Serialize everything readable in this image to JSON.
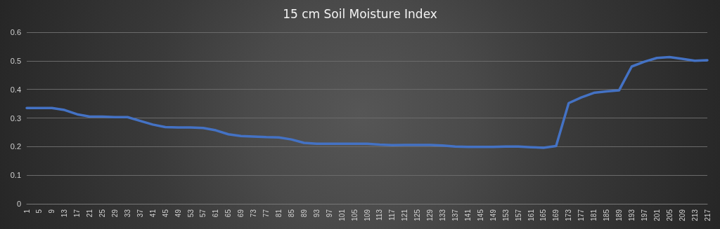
{
  "chart_data": {
    "type": "line",
    "title": "15 cm Soil Moisture Index",
    "categories": [
      "1",
      "5",
      "9",
      "13",
      "17",
      "21",
      "25",
      "29",
      "33",
      "37",
      "41",
      "45",
      "49",
      "53",
      "57",
      "61",
      "65",
      "69",
      "73",
      "77",
      "81",
      "85",
      "89",
      "93",
      "97",
      "101",
      "105",
      "109",
      "113",
      "117",
      "121",
      "125",
      "129",
      "133",
      "137",
      "141",
      "145",
      "149",
      "153",
      "157",
      "161",
      "165",
      "169",
      "173",
      "177",
      "181",
      "185",
      "189",
      "193",
      "197",
      "201",
      "205",
      "209",
      "213",
      "217"
    ],
    "series": [
      {
        "color": "#4472c4",
        "values": [
          0.335,
          0.335,
          0.335,
          0.328,
          0.313,
          0.305,
          0.305,
          0.303,
          0.303,
          0.29,
          0.277,
          0.268,
          0.267,
          0.267,
          0.265,
          0.257,
          0.243,
          0.237,
          0.235,
          0.233,
          0.232,
          0.225,
          0.213,
          0.21,
          0.21,
          0.21,
          0.21,
          0.21,
          0.207,
          0.205,
          0.206,
          0.206,
          0.206,
          0.204,
          0.2,
          0.199,
          0.199,
          0.199,
          0.2,
          0.2,
          0.198,
          0.196,
          0.202,
          0.352,
          0.372,
          0.388,
          0.393,
          0.397,
          0.48,
          0.497,
          0.51,
          0.513,
          0.507,
          0.5,
          0.502
        ]
      }
    ],
    "ylim": [
      0,
      0.6
    ],
    "yticks": [
      0,
      0.1,
      0.2,
      0.3,
      0.4,
      0.5,
      0.6
    ],
    "grid": "y",
    "marker": "none",
    "line_style": "solid"
  }
}
